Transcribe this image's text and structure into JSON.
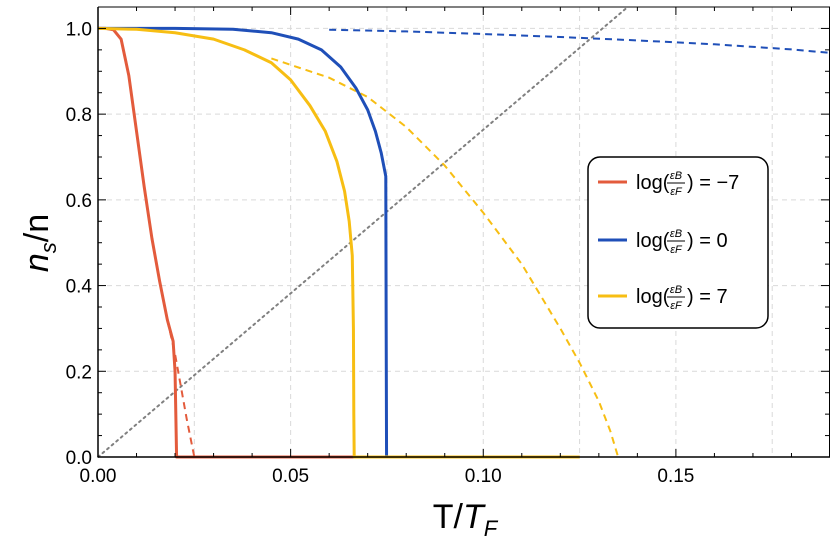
{
  "chart_data": {
    "type": "line",
    "xlabel": {
      "main": "T/",
      "italic": "T",
      "sub": "F"
    },
    "ylabel": {
      "italic": "n",
      "sub": "s",
      "rest": "/n"
    },
    "xlim": [
      0,
      0.19
    ],
    "ylim": [
      0,
      1.05
    ],
    "x_ticks": [
      {
        "value": 0.0,
        "label": "0.00"
      },
      {
        "value": 0.05,
        "label": "0.05"
      },
      {
        "value": 0.1,
        "label": "0.10"
      },
      {
        "value": 0.15,
        "label": "0.15"
      }
    ],
    "y_ticks": [
      {
        "value": 0.0,
        "label": "0.0"
      },
      {
        "value": 0.2,
        "label": "0.2"
      },
      {
        "value": 0.4,
        "label": "0.4"
      },
      {
        "value": 0.6,
        "label": "0.6"
      },
      {
        "value": 0.8,
        "label": "0.8"
      },
      {
        "value": 1.0,
        "label": "1.0"
      }
    ],
    "grid": true,
    "legend_position": "right",
    "series": [
      {
        "name": "log(εB/εF) = −7",
        "color": "#E35B3C",
        "solid": {
          "x": [
            0,
            0.002,
            0.004,
            0.006,
            0.008,
            0.01,
            0.012,
            0.014,
            0.016,
            0.018,
            0.0195,
            0.02,
            0.0202,
            0.0204,
            0.03,
            0.06,
            0.1,
            0.125
          ],
          "y": [
            1.0,
            1.0,
            0.997,
            0.975,
            0.89,
            0.76,
            0.63,
            0.51,
            0.41,
            0.32,
            0.27,
            0.2,
            0.1,
            0.0,
            0.0,
            0.0,
            0.0,
            0.0
          ]
        },
        "dashed": {
          "x": [
            0.018,
            0.019,
            0.02,
            0.021,
            0.022,
            0.023,
            0.024,
            0.025,
            0.03,
            0.06,
            0.1,
            0.125
          ],
          "y": [
            0.32,
            0.28,
            0.24,
            0.19,
            0.14,
            0.09,
            0.045,
            0.0,
            0.0,
            0.0,
            0.0,
            0.0
          ]
        }
      },
      {
        "name": "log(εB/εF) = 0",
        "color": "#1F4FB8",
        "solid": {
          "x": [
            0,
            0.02,
            0.035,
            0.045,
            0.052,
            0.058,
            0.063,
            0.067,
            0.07,
            0.072,
            0.0735,
            0.0747,
            0.0748,
            0.0749,
            0.08,
            0.1,
            0.125
          ],
          "y": [
            1.0,
            1.0,
            0.998,
            0.99,
            0.975,
            0.95,
            0.91,
            0.86,
            0.81,
            0.76,
            0.71,
            0.655,
            0.3,
            0.0,
            0.0,
            0.0,
            0.0
          ]
        },
        "dashed": {
          "x": [
            0.06,
            0.08,
            0.1,
            0.12,
            0.14,
            0.16,
            0.18,
            0.19
          ],
          "y": [
            0.997,
            0.993,
            0.987,
            0.98,
            0.972,
            0.963,
            0.951,
            0.943
          ]
        }
      },
      {
        "name": "log(εB/εF) = 7",
        "color": "#F7BE13",
        "solid": {
          "x": [
            0,
            0.01,
            0.02,
            0.03,
            0.038,
            0.045,
            0.05,
            0.055,
            0.059,
            0.062,
            0.064,
            0.0652,
            0.066,
            0.0663,
            0.0664,
            0.0665,
            0.08,
            0.1,
            0.125
          ],
          "y": [
            1.0,
            0.998,
            0.99,
            0.975,
            0.95,
            0.92,
            0.88,
            0.82,
            0.76,
            0.69,
            0.62,
            0.55,
            0.47,
            0.3,
            0.1,
            0.0,
            0.0,
            0.0,
            0.0
          ]
        },
        "dashed": {
          "x": [
            0.045,
            0.06,
            0.07,
            0.08,
            0.09,
            0.1,
            0.11,
            0.12,
            0.125,
            0.13,
            0.133,
            0.135
          ],
          "y": [
            0.93,
            0.885,
            0.84,
            0.77,
            0.68,
            0.57,
            0.45,
            0.3,
            0.22,
            0.13,
            0.06,
            0.0
          ]
        }
      },
      {
        "name": "",
        "color": "#808080",
        "dotted": {
          "x": [
            0,
            0.1375
          ],
          "y": [
            0,
            1.05
          ]
        }
      }
    ],
    "legend": [
      {
        "prefix": "log(",
        "num": "εB",
        "den": "εF",
        "suffix": ") = −7",
        "color": "#E35B3C"
      },
      {
        "prefix": "log(",
        "num": "εB",
        "den": "εF",
        "suffix": ") = 0",
        "color": "#1F4FB8"
      },
      {
        "prefix": "log(",
        "num": "εB",
        "den": "εF",
        "suffix": ") = 7",
        "color": "#F7BE13"
      }
    ]
  }
}
